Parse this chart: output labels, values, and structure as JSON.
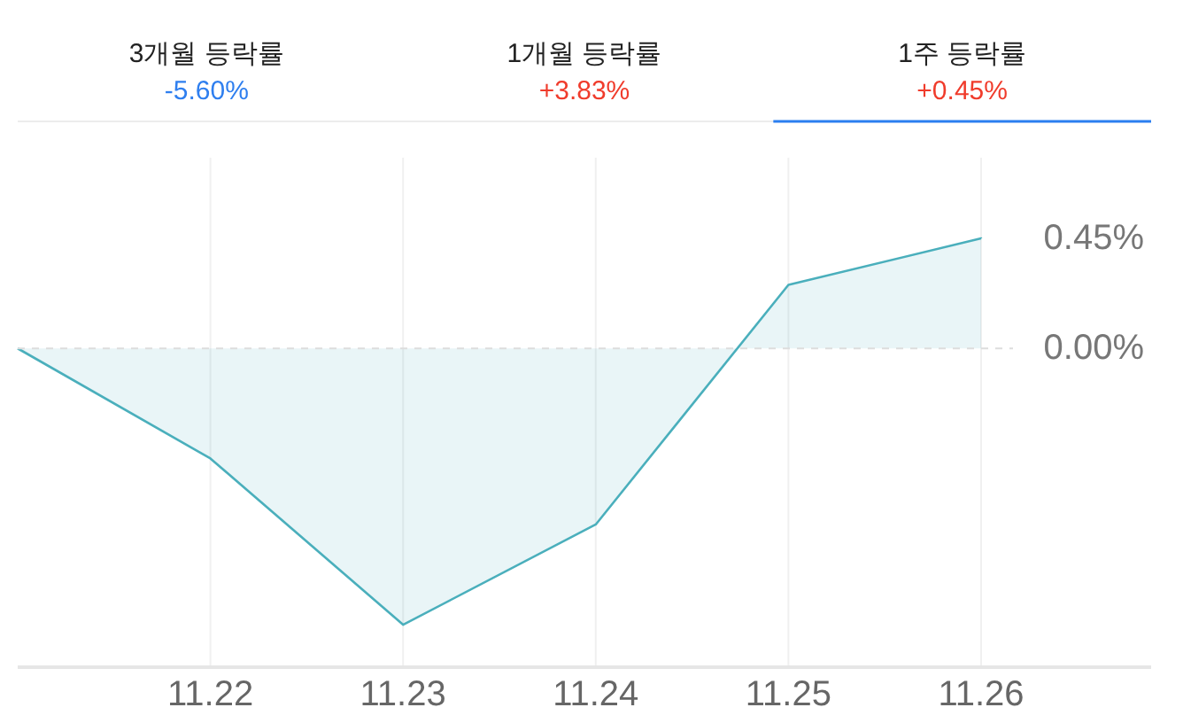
{
  "chart_data": {
    "type": "area",
    "categories": [
      null,
      "11.22",
      "11.23",
      "11.24",
      "11.25",
      "11.26"
    ],
    "series": [
      {
        "color": "#4aafbc",
        "values": [
          0,
          -0.45,
          -1.13,
          -0.72,
          0.26,
          0.45
        ]
      }
    ],
    "ylim": [
      -1.3,
      0.78
    ],
    "yticks": [
      {
        "value": 0,
        "label": "0.00%"
      },
      {
        "value": 0.45,
        "label": "0.45%"
      }
    ],
    "grid": "x",
    "ref_lines": [
      {
        "axis": "y",
        "value": 0,
        "line_style": "dashed",
        "color": "#dddddd"
      }
    ],
    "annotations": [
      "3개월 등락률",
      "-5.60%",
      "1개월 등락률",
      "+3.83%",
      "1주 등락률",
      "+0.45%"
    ]
  }
}
